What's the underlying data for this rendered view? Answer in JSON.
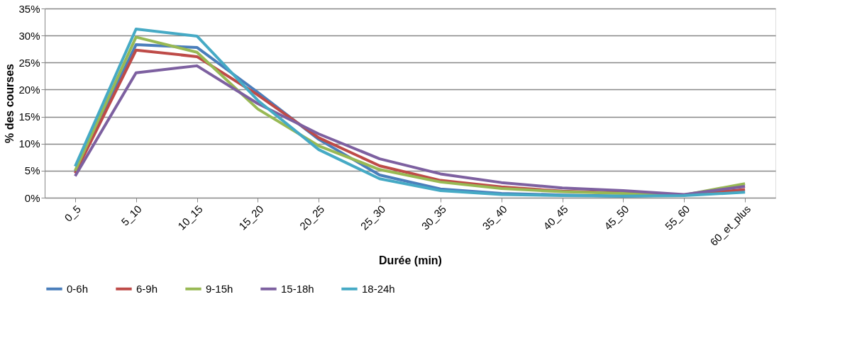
{
  "chart_data": {
    "type": "line",
    "xlabel": "Durée (min)",
    "ylabel": "% des courses",
    "categories": [
      "0_5",
      "5_10",
      "10_15",
      "15_20",
      "20_25",
      "25_30",
      "30_35",
      "35_40",
      "40_45",
      "45_50",
      "55_60",
      "60_et_plus"
    ],
    "series": [
      {
        "name": "0-6h",
        "color": "#4a7ebb",
        "values": [
          4.8,
          28.3,
          27.8,
          19.5,
          10.8,
          4.2,
          1.6,
          0.8,
          0.5,
          0.3,
          0.5,
          1.1
        ]
      },
      {
        "name": "6-9h",
        "color": "#be4b48",
        "values": [
          4.5,
          27.3,
          26.1,
          19.0,
          11.1,
          5.9,
          3.2,
          2.0,
          1.2,
          0.9,
          0.5,
          1.5
        ]
      },
      {
        "name": "9-15h",
        "color": "#98b954",
        "values": [
          5.0,
          29.7,
          26.9,
          16.4,
          9.6,
          5.2,
          2.9,
          1.7,
          1.1,
          0.8,
          0.5,
          2.6
        ]
      },
      {
        "name": "15-18h",
        "color": "#7d60a0",
        "values": [
          4.0,
          23.1,
          24.4,
          17.4,
          11.8,
          7.2,
          4.4,
          2.8,
          1.8,
          1.3,
          0.6,
          2.1
        ]
      },
      {
        "name": "18-24h",
        "color": "#46aac5",
        "values": [
          5.8,
          31.2,
          29.9,
          18.0,
          8.9,
          3.5,
          1.3,
          0.6,
          0.4,
          0.3,
          0.4,
          1.0
        ]
      }
    ],
    "ylim": [
      0,
      35
    ],
    "yticks": [
      {
        "value": 0,
        "label": "0%"
      },
      {
        "value": 5,
        "label": "5%"
      },
      {
        "value": 10,
        "label": "10%"
      },
      {
        "value": 15,
        "label": "15%"
      },
      {
        "value": 20,
        "label": "20%"
      },
      {
        "value": 25,
        "label": "25%"
      },
      {
        "value": 30,
        "label": "30%"
      },
      {
        "value": 35,
        "label": "35%"
      }
    ],
    "grid": "y",
    "legend": "bottom",
    "marker": "none",
    "line_style": "solid"
  }
}
